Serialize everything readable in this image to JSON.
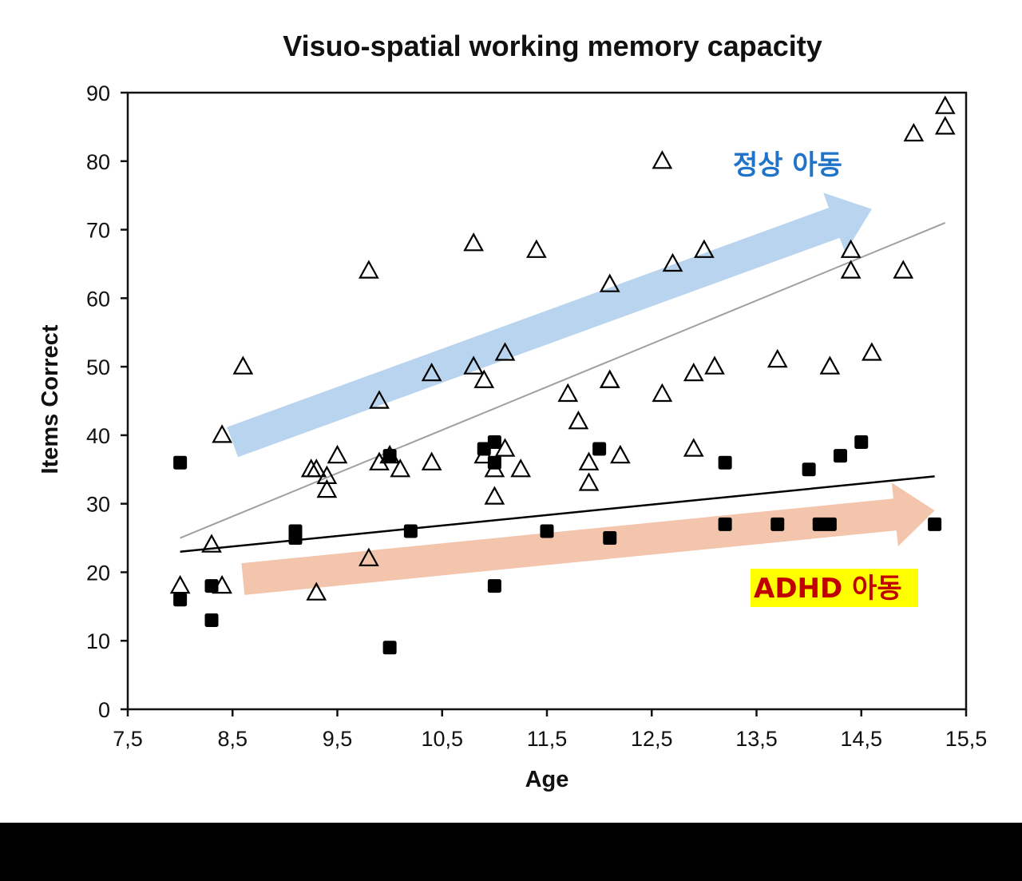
{
  "chart_data": {
    "type": "scatter",
    "title": "Visuo-spatial working memory capacity",
    "xlabel": "Age",
    "ylabel": "Items Correct",
    "xlim": [
      7.5,
      15.5
    ],
    "ylim": [
      0,
      90
    ],
    "x_ticks": [
      "7,5",
      "8,5",
      "9,5",
      "10,5",
      "11,5",
      "12,5",
      "13,5",
      "14,5",
      "15,5"
    ],
    "y_ticks": [
      "0",
      "10",
      "20",
      "30",
      "40",
      "50",
      "60",
      "70",
      "80",
      "90"
    ],
    "grid": false,
    "legend": "none",
    "series": [
      {
        "marker": "open-triangle",
        "color": "#000000",
        "points": [
          [
            8.0,
            18
          ],
          [
            8.3,
            24
          ],
          [
            8.4,
            18
          ],
          [
            8.4,
            40
          ],
          [
            8.6,
            50
          ],
          [
            9.25,
            35
          ],
          [
            9.3,
            35
          ],
          [
            9.3,
            17
          ],
          [
            9.4,
            34
          ],
          [
            9.4,
            32
          ],
          [
            9.5,
            37
          ],
          [
            9.8,
            64
          ],
          [
            9.8,
            22
          ],
          [
            9.9,
            45
          ],
          [
            9.9,
            36
          ],
          [
            10.0,
            37
          ],
          [
            10.1,
            35
          ],
          [
            10.4,
            36
          ],
          [
            10.4,
            49
          ],
          [
            10.8,
            68
          ],
          [
            10.8,
            50
          ],
          [
            10.9,
            48
          ],
          [
            10.9,
            37
          ],
          [
            11.0,
            35
          ],
          [
            11.0,
            31
          ],
          [
            11.1,
            52
          ],
          [
            11.1,
            38
          ],
          [
            11.25,
            35
          ],
          [
            11.4,
            67
          ],
          [
            11.7,
            46
          ],
          [
            11.8,
            42
          ],
          [
            11.9,
            36
          ],
          [
            11.9,
            33
          ],
          [
            12.1,
            62
          ],
          [
            12.1,
            48
          ],
          [
            12.1,
            48
          ],
          [
            12.2,
            37
          ],
          [
            12.6,
            80
          ],
          [
            12.6,
            46
          ],
          [
            12.7,
            65
          ],
          [
            12.9,
            49
          ],
          [
            12.9,
            38
          ],
          [
            13.0,
            67
          ],
          [
            13.1,
            50
          ],
          [
            13.7,
            51
          ],
          [
            14.2,
            50
          ],
          [
            14.4,
            67
          ],
          [
            14.4,
            64
          ],
          [
            14.6,
            52
          ],
          [
            14.9,
            64
          ],
          [
            15.0,
            84
          ],
          [
            15.3,
            85
          ],
          [
            15.3,
            88
          ]
        ]
      },
      {
        "marker": "filled-square",
        "color": "#000000",
        "points": [
          [
            8.0,
            36
          ],
          [
            8.0,
            16
          ],
          [
            8.3,
            18
          ],
          [
            8.3,
            13
          ],
          [
            9.1,
            26
          ],
          [
            9.1,
            25
          ],
          [
            10.0,
            37
          ],
          [
            10.0,
            9
          ],
          [
            10.2,
            26
          ],
          [
            10.9,
            38
          ],
          [
            11.0,
            39
          ],
          [
            11.0,
            36
          ],
          [
            11.0,
            18
          ],
          [
            11.5,
            26
          ],
          [
            12.0,
            38
          ],
          [
            12.1,
            25
          ],
          [
            13.2,
            36
          ],
          [
            13.2,
            27
          ],
          [
            13.7,
            27
          ],
          [
            14.0,
            35
          ],
          [
            14.1,
            27
          ],
          [
            14.2,
            27
          ],
          [
            14.3,
            37
          ],
          [
            14.5,
            39
          ],
          [
            15.2,
            27
          ]
        ]
      }
    ],
    "trendlines": [
      {
        "color": "#a0a0a0",
        "from": [
          8.0,
          25
        ],
        "to": [
          15.3,
          71
        ]
      },
      {
        "color": "#000000",
        "from": [
          8.0,
          23
        ],
        "to": [
          15.2,
          34
        ]
      }
    ],
    "annotations": [
      {
        "text": "정상 아동",
        "color": "#1f73c8"
      },
      {
        "text": "ADHD 아동",
        "color": "#c00000",
        "background": "#ffff00"
      }
    ],
    "arrows": [
      {
        "color": "#b9d4ee",
        "from": [
          8.5,
          39
        ],
        "to": [
          14.6,
          73
        ]
      },
      {
        "color": "#f3c5ad",
        "from": [
          8.6,
          19
        ],
        "to": [
          15.2,
          29
        ]
      }
    ]
  }
}
